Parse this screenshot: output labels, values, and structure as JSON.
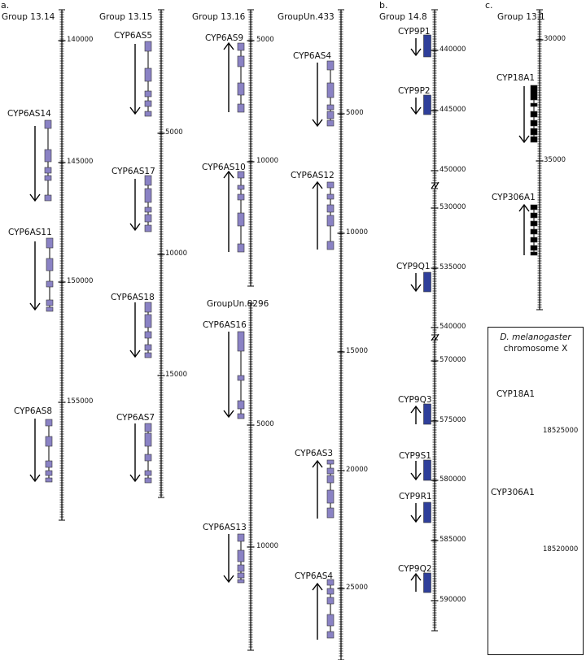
{
  "panels": [
    {
      "id": "a",
      "label": "a."
    },
    {
      "id": "b",
      "label": "b."
    },
    {
      "id": "c",
      "label": "c."
    }
  ],
  "colors": {
    "purple_exon": "#8a82c4",
    "blue_exon": "#2f3f9a",
    "black_exon": "#000000",
    "line": "#000000"
  },
  "inset": {
    "line1": "D. melanogaster",
    "line2": "chromosome X"
  },
  "groups": [
    {
      "name": "Group 13.14",
      "ticks": [
        "140000",
        "145000",
        "150000",
        "155000"
      ],
      "genes": [
        {
          "name": "CYP6AS14",
          "dir": "down"
        },
        {
          "name": "CYP6AS11",
          "dir": "down"
        },
        {
          "name": "CYP6AS8",
          "dir": "down"
        }
      ]
    },
    {
      "name": "Group 13.15",
      "ticks": [
        "5000",
        "10000",
        "15000"
      ],
      "genes": [
        {
          "name": "CYP6AS5",
          "dir": "down"
        },
        {
          "name": "CYP6AS17",
          "dir": "down"
        },
        {
          "name": "CYP6AS18",
          "dir": "down"
        },
        {
          "name": "CYP6AS7",
          "dir": "down"
        }
      ]
    },
    {
      "name": "Group 13.16",
      "ticks": [
        "5000",
        "10000"
      ],
      "genes": [
        {
          "name": "CYP6AS9",
          "dir": "up"
        },
        {
          "name": "CYP6AS10",
          "dir": "up"
        }
      ]
    },
    {
      "name": "GroupUn.8296",
      "ticks": [
        "5000",
        "10000"
      ],
      "genes": [
        {
          "name": "CYP6AS16",
          "dir": "down"
        },
        {
          "name": "CYP6AS13",
          "dir": "down"
        }
      ]
    },
    {
      "name": "GroupUn.433",
      "ticks": [
        "5000",
        "10000",
        "15000",
        "20000",
        "25000"
      ],
      "genes": [
        {
          "name": "CYP6AS4",
          "dir": "down"
        },
        {
          "name": "CYP6AS12",
          "dir": "up"
        },
        {
          "name": "CYP6AS3",
          "dir": "up"
        },
        {
          "name": "CYP6AS4",
          "dir": "up"
        }
      ]
    },
    {
      "name": "Group 14.8",
      "ticks": [
        "440000",
        "445000",
        "450000",
        "530000",
        "535000",
        "540000",
        "570000",
        "575000",
        "580000",
        "585000",
        "590000"
      ],
      "genes": [
        {
          "name": "CYP9P1",
          "dir": "down"
        },
        {
          "name": "CYP9P2",
          "dir": "down"
        },
        {
          "name": "CYP9Q1",
          "dir": "down"
        },
        {
          "name": "CYP9Q3",
          "dir": "up"
        },
        {
          "name": "CYP9S1",
          "dir": "down"
        },
        {
          "name": "CYP9R1",
          "dir": "down"
        },
        {
          "name": "CYP9Q2",
          "dir": "up"
        }
      ]
    },
    {
      "name": "Group 13.1",
      "ticks": [
        "30000",
        "35000"
      ],
      "genes": [
        {
          "name": "CYP18A1",
          "dir": "down"
        },
        {
          "name": "CYP306A1",
          "dir": "up"
        }
      ]
    },
    {
      "name": "",
      "ticks": [
        "18525000",
        "18520000"
      ],
      "genes": [
        {
          "name": "CYP18A1",
          "dir": "down"
        },
        {
          "name": "CYP306A1",
          "dir": "up"
        }
      ]
    }
  ]
}
